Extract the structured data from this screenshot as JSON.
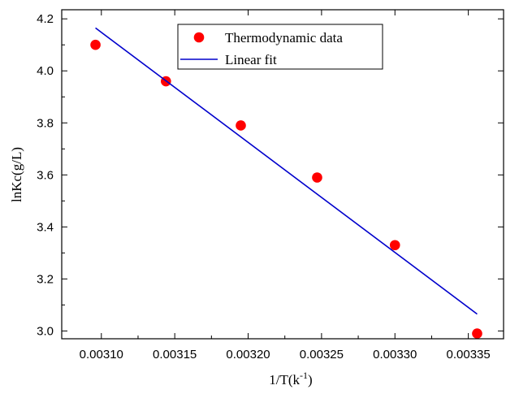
{
  "chart_data": {
    "type": "scatter",
    "xlabel_main": "1/T(k",
    "xlabel_sup": "-1",
    "xlabel_close": ")",
    "ylabel": "lnKc(g/L)",
    "xlim": [
      0.003073,
      0.003374
    ],
    "ylim": [
      2.97,
      4.235
    ],
    "x_ticks": [
      0.0031,
      0.00315,
      0.0032,
      0.00325,
      0.0033,
      0.00335
    ],
    "x_tick_labels": [
      "0.00310",
      "0.00315",
      "0.00320",
      "0.00325",
      "0.00330",
      "0.00335"
    ],
    "y_ticks": [
      3.0,
      3.2,
      3.4,
      3.6,
      3.8,
      4.0,
      4.2
    ],
    "y_tick_labels": [
      "3.0",
      "3.2",
      "3.4",
      "3.6",
      "3.8",
      "4.0",
      "4.2"
    ],
    "grid": false,
    "legend_position": "top-center",
    "series": [
      {
        "name": "Thermodynamic data",
        "kind": "scatter",
        "color": "#ff0000",
        "points": [
          {
            "x": 0.003096,
            "y": 4.1
          },
          {
            "x": 0.003144,
            "y": 3.96
          },
          {
            "x": 0.003195,
            "y": 3.79
          },
          {
            "x": 0.003247,
            "y": 3.59
          },
          {
            "x": 0.0033,
            "y": 3.33
          },
          {
            "x": 0.003356,
            "y": 2.99
          }
        ]
      },
      {
        "name": "Linear fit",
        "kind": "line",
        "color": "#0000cc",
        "points": [
          {
            "x": 0.003096,
            "y": 4.165
          },
          {
            "x": 0.003356,
            "y": 3.065
          }
        ]
      }
    ]
  }
}
